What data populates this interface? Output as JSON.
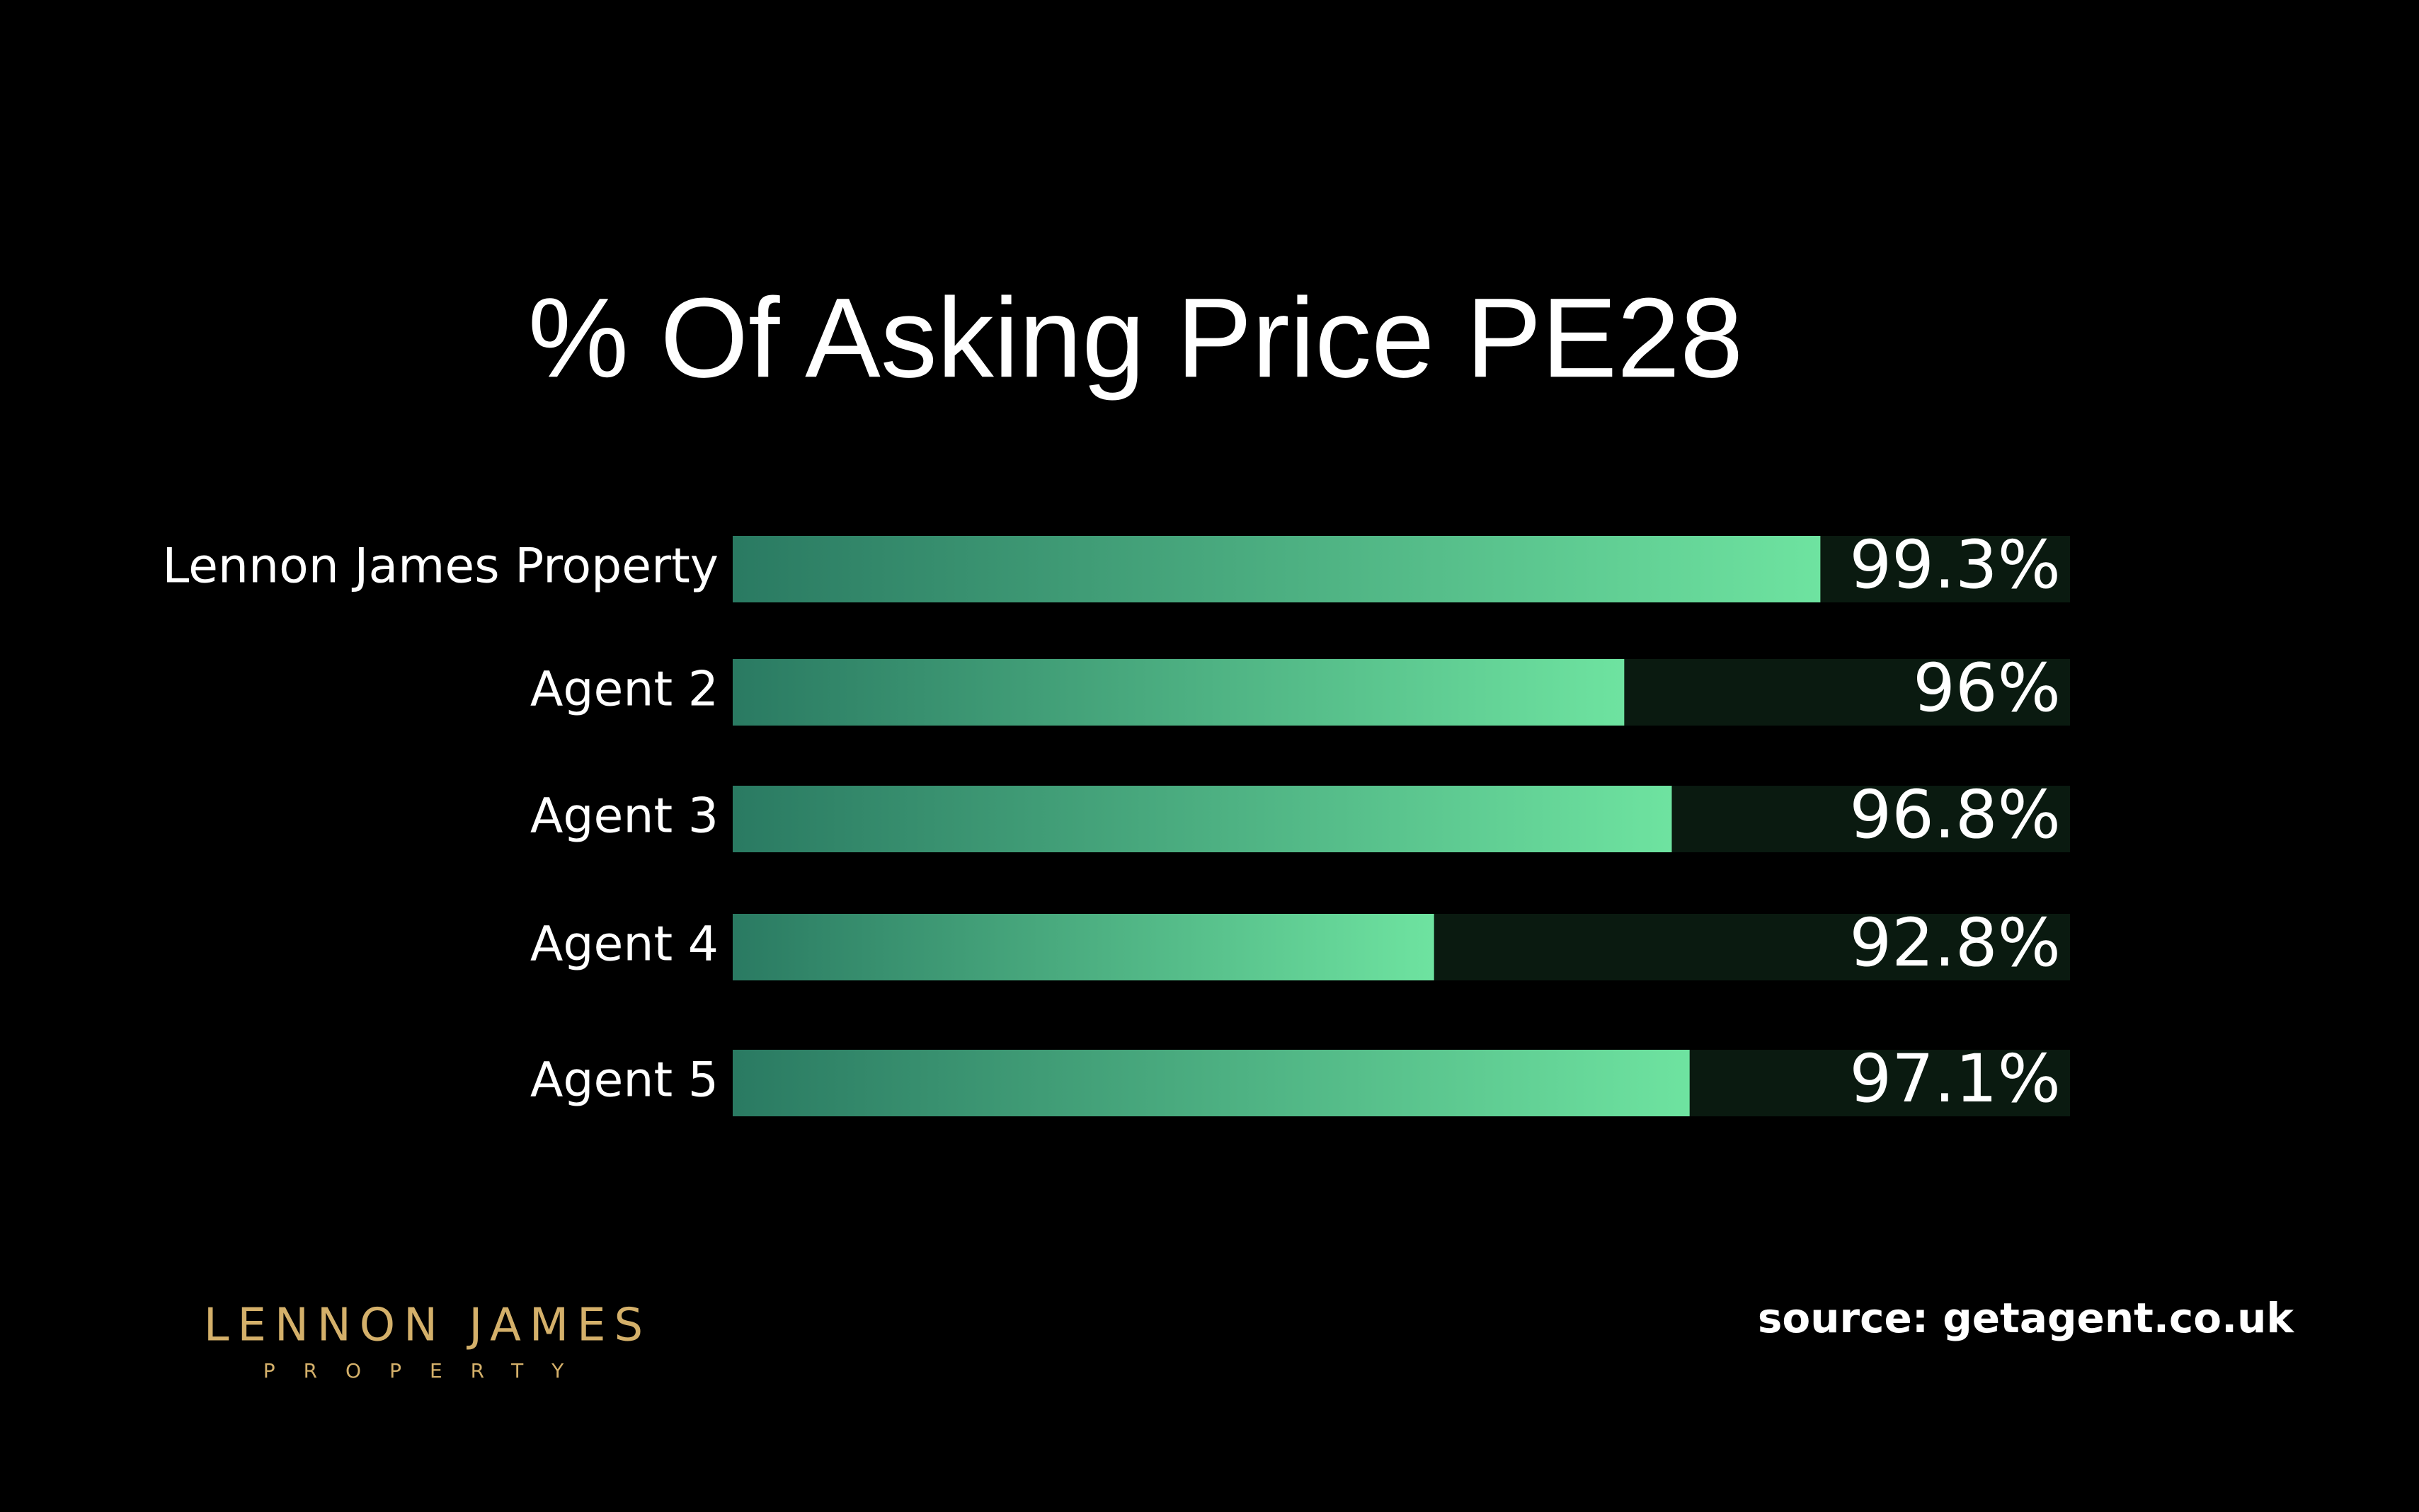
{
  "chart_data": {
    "type": "bar",
    "orientation": "horizontal",
    "title": "% Of Asking Price PE28",
    "categories": [
      "Lennon James Property",
      "Agent 2",
      "Agent 3",
      "Agent 4",
      "Agent 5"
    ],
    "values": [
      99.3,
      96,
      96.8,
      92.8,
      97.1
    ],
    "value_labels": [
      "99.3%",
      "96%",
      "96.8%",
      "92.8%",
      "97.1%"
    ],
    "color": "#6ee3a0",
    "xlim": [
      81,
      103.5
    ]
  },
  "footer": {
    "source": "source: getagent.co.uk",
    "brand": "LENNON JAMES",
    "brand_sub": "PROPERTY"
  }
}
